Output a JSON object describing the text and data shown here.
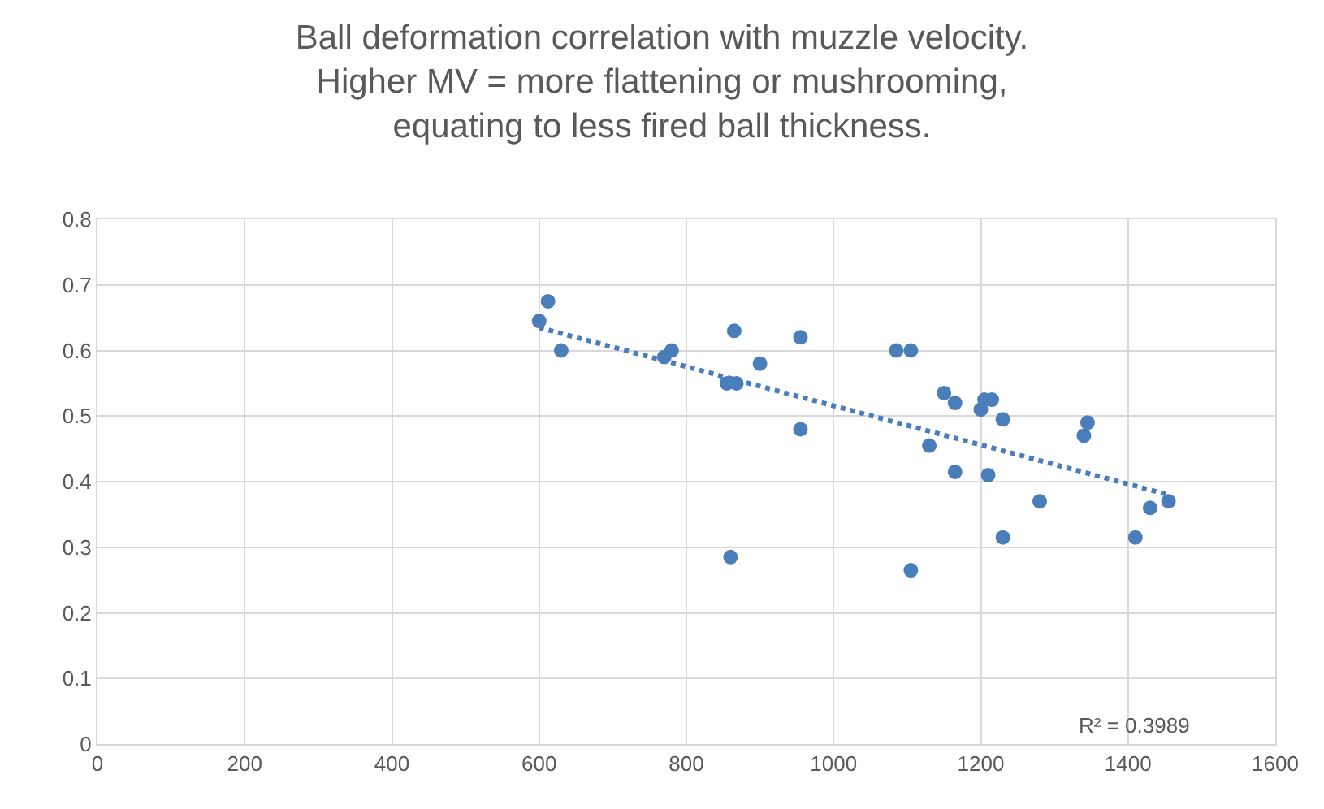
{
  "chart_data": {
    "type": "scatter",
    "title": "Ball deformation correlation with muzzle velocity.\nHigher MV = more flattening or mushrooming,\nequating to less fired ball thickness.",
    "xlim": [
      0,
      1600
    ],
    "xticks": [
      0,
      200,
      400,
      600,
      800,
      1000,
      1200,
      1400,
      1600
    ],
    "ylim": [
      0,
      0.8
    ],
    "yticks": [
      0,
      0.1,
      0.2,
      0.3,
      0.4,
      0.5,
      0.6,
      0.7,
      0.8
    ],
    "grid": true,
    "series": [
      {
        "color": "#4a7ebb",
        "marker": "circle",
        "x": [
          600,
          612,
          630,
          770,
          780,
          865,
          855,
          868,
          900,
          955,
          955,
          860,
          1085,
          1105,
          1150,
          1165,
          1165,
          1130,
          1200,
          1205,
          1215,
          1210,
          1230,
          1230,
          1280,
          1105,
          1340,
          1345,
          1410,
          1430,
          1455
        ],
        "values": [
          0.645,
          0.675,
          0.6,
          0.59,
          0.6,
          0.63,
          0.55,
          0.55,
          0.58,
          0.62,
          0.48,
          0.285,
          0.6,
          0.6,
          0.535,
          0.52,
          0.415,
          0.455,
          0.51,
          0.525,
          0.525,
          0.41,
          0.495,
          0.315,
          0.37,
          0.265,
          0.47,
          0.49,
          0.315,
          0.36,
          0.37
        ]
      },
      {
        "type": "line",
        "color": "#4a7ebb",
        "line_style": "dotted",
        "marker": "none",
        "x": [
          600,
          1455
        ],
        "values": [
          0.635,
          0.38
        ]
      }
    ],
    "annotations": [
      "R² = 0.3989"
    ]
  }
}
